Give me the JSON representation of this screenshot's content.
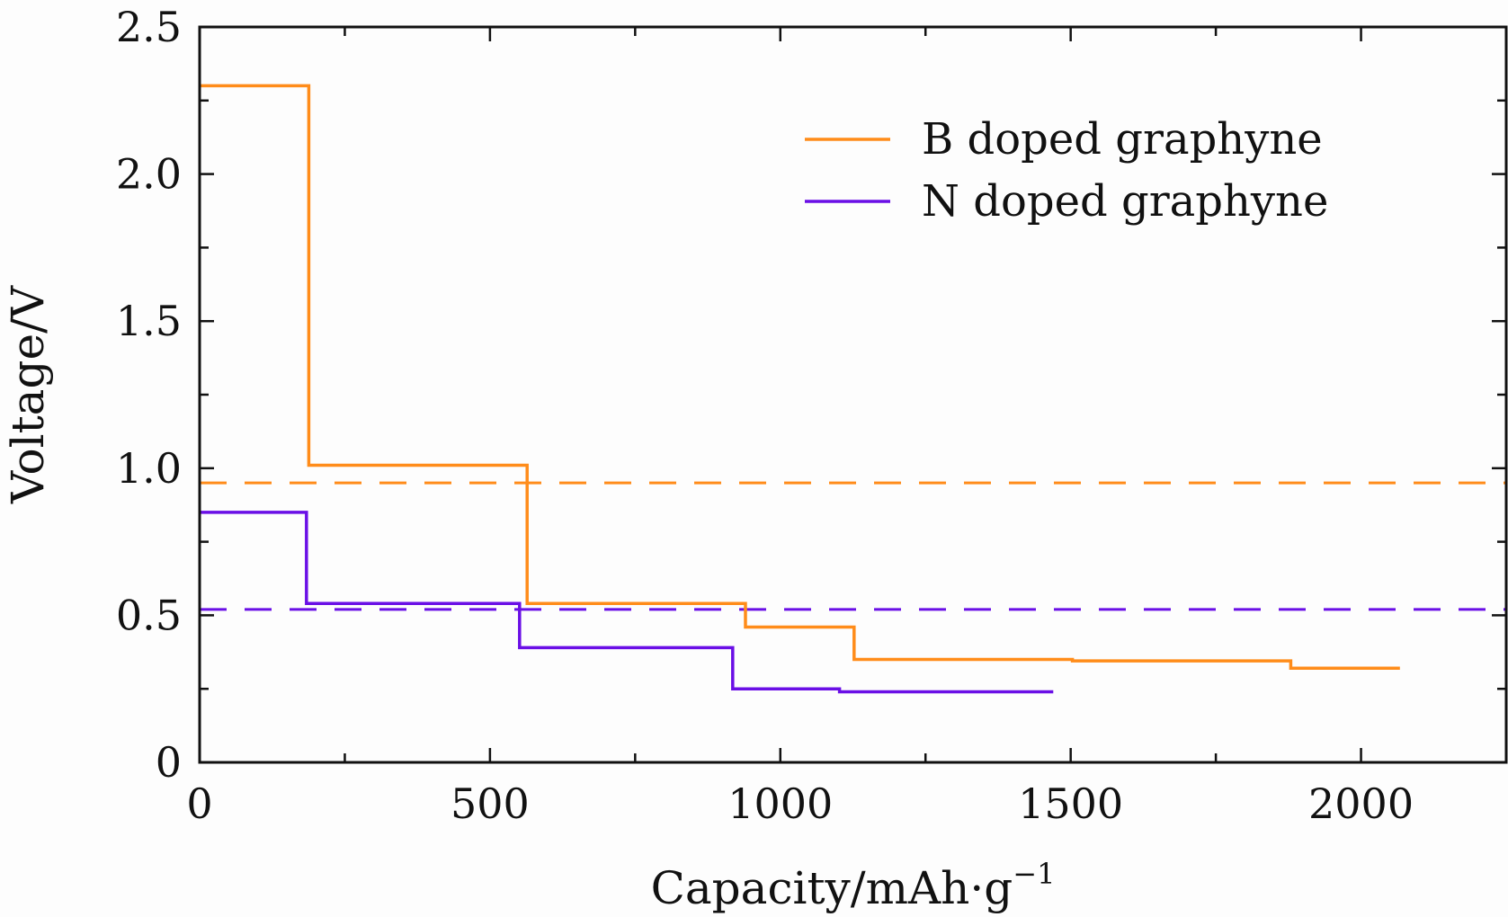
{
  "chart_data": {
    "type": "line",
    "title": "",
    "xlabel": "Capacity/mAh·g",
    "xlabel_superscript": "−1",
    "ylabel": "Voltage/V",
    "xlim": [
      0,
      2250
    ],
    "ylim": [
      0,
      2.5
    ],
    "x_ticks": [
      0,
      500,
      1000,
      1500,
      2000
    ],
    "x_tick_labels": [
      "0",
      "500",
      "1000",
      "1500",
      "2000"
    ],
    "x_minor_ticks": [
      250,
      750,
      1250,
      1750
    ],
    "y_ticks": [
      0,
      0.5,
      1.0,
      1.5,
      2.0,
      2.5
    ],
    "y_tick_labels": [
      "0",
      "0.5",
      "1.0",
      "1.5",
      "2.0",
      "2.5"
    ],
    "y_minor_ticks": [
      0.25,
      0.75,
      1.25,
      1.75,
      2.25
    ],
    "grid": false,
    "legend_position": "top-right",
    "series": [
      {
        "name": "B doped graphyne",
        "color": "#ff8c1a",
        "style": "step",
        "points": [
          [
            0,
            2.3
          ],
          [
            188,
            2.3
          ],
          [
            188,
            1.01
          ],
          [
            564,
            1.01
          ],
          [
            564,
            0.54
          ],
          [
            940,
            0.54
          ],
          [
            940,
            0.46
          ],
          [
            1127,
            0.46
          ],
          [
            1127,
            0.35
          ],
          [
            1503,
            0.35
          ],
          [
            1503,
            0.345
          ],
          [
            1879,
            0.345
          ],
          [
            1879,
            0.32
          ],
          [
            2067,
            0.32
          ]
        ]
      },
      {
        "name": "N doped graphyne",
        "color": "#6a0fe6",
        "style": "step",
        "points": [
          [
            0,
            0.85
          ],
          [
            184,
            0.85
          ],
          [
            184,
            0.54
          ],
          [
            551,
            0.54
          ],
          [
            551,
            0.39
          ],
          [
            918,
            0.39
          ],
          [
            918,
            0.25
          ],
          [
            1102,
            0.25
          ],
          [
            1102,
            0.24
          ],
          [
            1470,
            0.24
          ]
        ]
      }
    ],
    "reference_lines": [
      {
        "y": 0.95,
        "color": "#ff8c1a",
        "style": "dashed"
      },
      {
        "y": 0.52,
        "color": "#6a0fe6",
        "style": "dashed"
      }
    ]
  }
}
